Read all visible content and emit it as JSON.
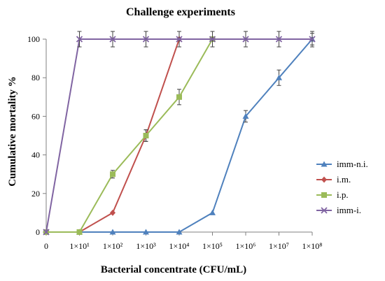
{
  "chart_data": {
    "type": "line",
    "title": "Challenge experiments",
    "xlabel": "Bacterial concentrate (CFU/mL)",
    "ylabel": "Cumulative mortality %",
    "ylim": [
      0,
      100
    ],
    "yticks": [
      0,
      20,
      40,
      60,
      80,
      100
    ],
    "categories": [
      "0",
      "1×10¹",
      "1×10²",
      "1×10³",
      "1×10⁴",
      "1×10⁵",
      "1×10⁶",
      "1×10⁷",
      "1×10⁸"
    ],
    "grid": false,
    "legend_position": "right",
    "series": [
      {
        "name": "imm-n.i.",
        "color": "#4f81bd",
        "marker": "triangle",
        "values": [
          0,
          0,
          0,
          0,
          0,
          10,
          60,
          80,
          100
        ],
        "error": [
          0,
          0,
          0,
          0,
          0,
          0,
          3,
          4,
          3
        ]
      },
      {
        "name": "i.m.",
        "color": "#c0504d",
        "marker": "diamond",
        "values": [
          0,
          0,
          10,
          50,
          100,
          null,
          null,
          null,
          null
        ],
        "error": [
          0,
          0,
          0,
          3,
          0,
          0,
          0,
          0,
          0
        ]
      },
      {
        "name": "i.p.",
        "color": "#9bbb59",
        "marker": "square",
        "values": [
          0,
          0,
          30,
          50,
          70,
          100,
          null,
          null,
          null
        ],
        "error": [
          0,
          0,
          2,
          3,
          4,
          0,
          0,
          0,
          0
        ]
      },
      {
        "name": "imm-i.",
        "color": "#8064a2",
        "marker": "x",
        "values": [
          0,
          100,
          100,
          100,
          100,
          100,
          100,
          100,
          100
        ],
        "error": [
          0,
          4,
          4,
          4,
          4,
          4,
          4,
          4,
          4
        ]
      }
    ]
  }
}
